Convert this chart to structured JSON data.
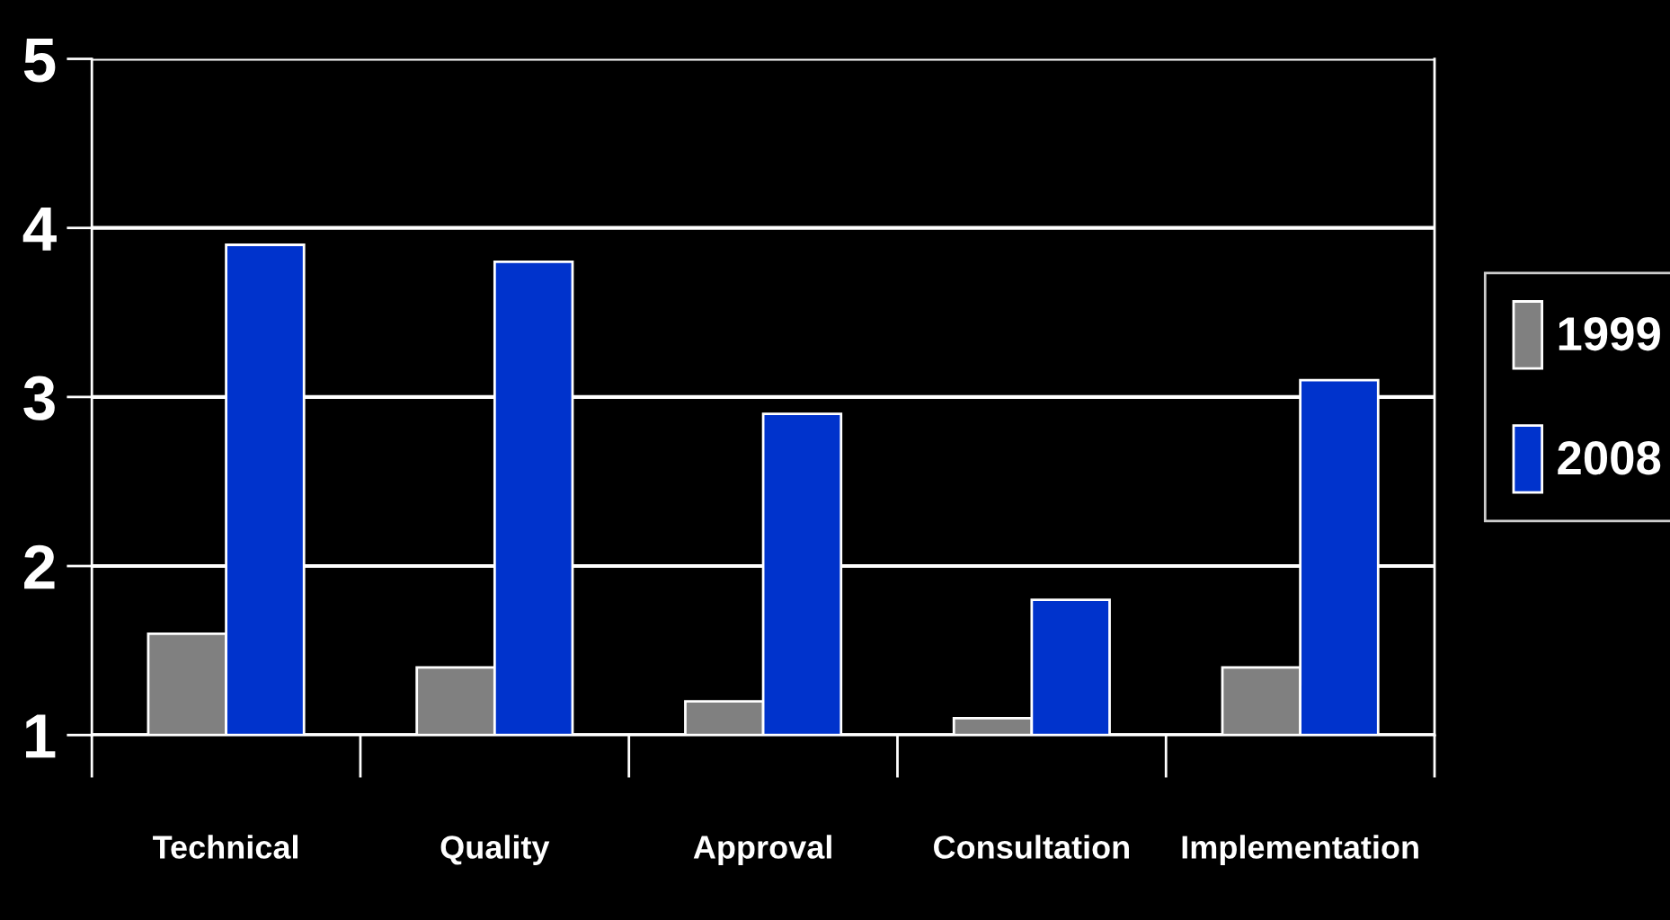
{
  "chart_data": {
    "type": "bar",
    "categories": [
      "Technical",
      "Quality",
      "Approval",
      "Consultation",
      "Implementation"
    ],
    "series": [
      {
        "name": "1999",
        "color": "#808080",
        "values": [
          1.6,
          1.4,
          1.2,
          1.1,
          1.4
        ]
      },
      {
        "name": "2008",
        "color": "#0033cc",
        "values": [
          3.9,
          3.8,
          2.9,
          1.8,
          3.1
        ]
      }
    ],
    "ylim": [
      1,
      5
    ],
    "yticks": [
      1,
      2,
      3,
      4,
      5
    ],
    "grid": "y",
    "legend": "right"
  }
}
